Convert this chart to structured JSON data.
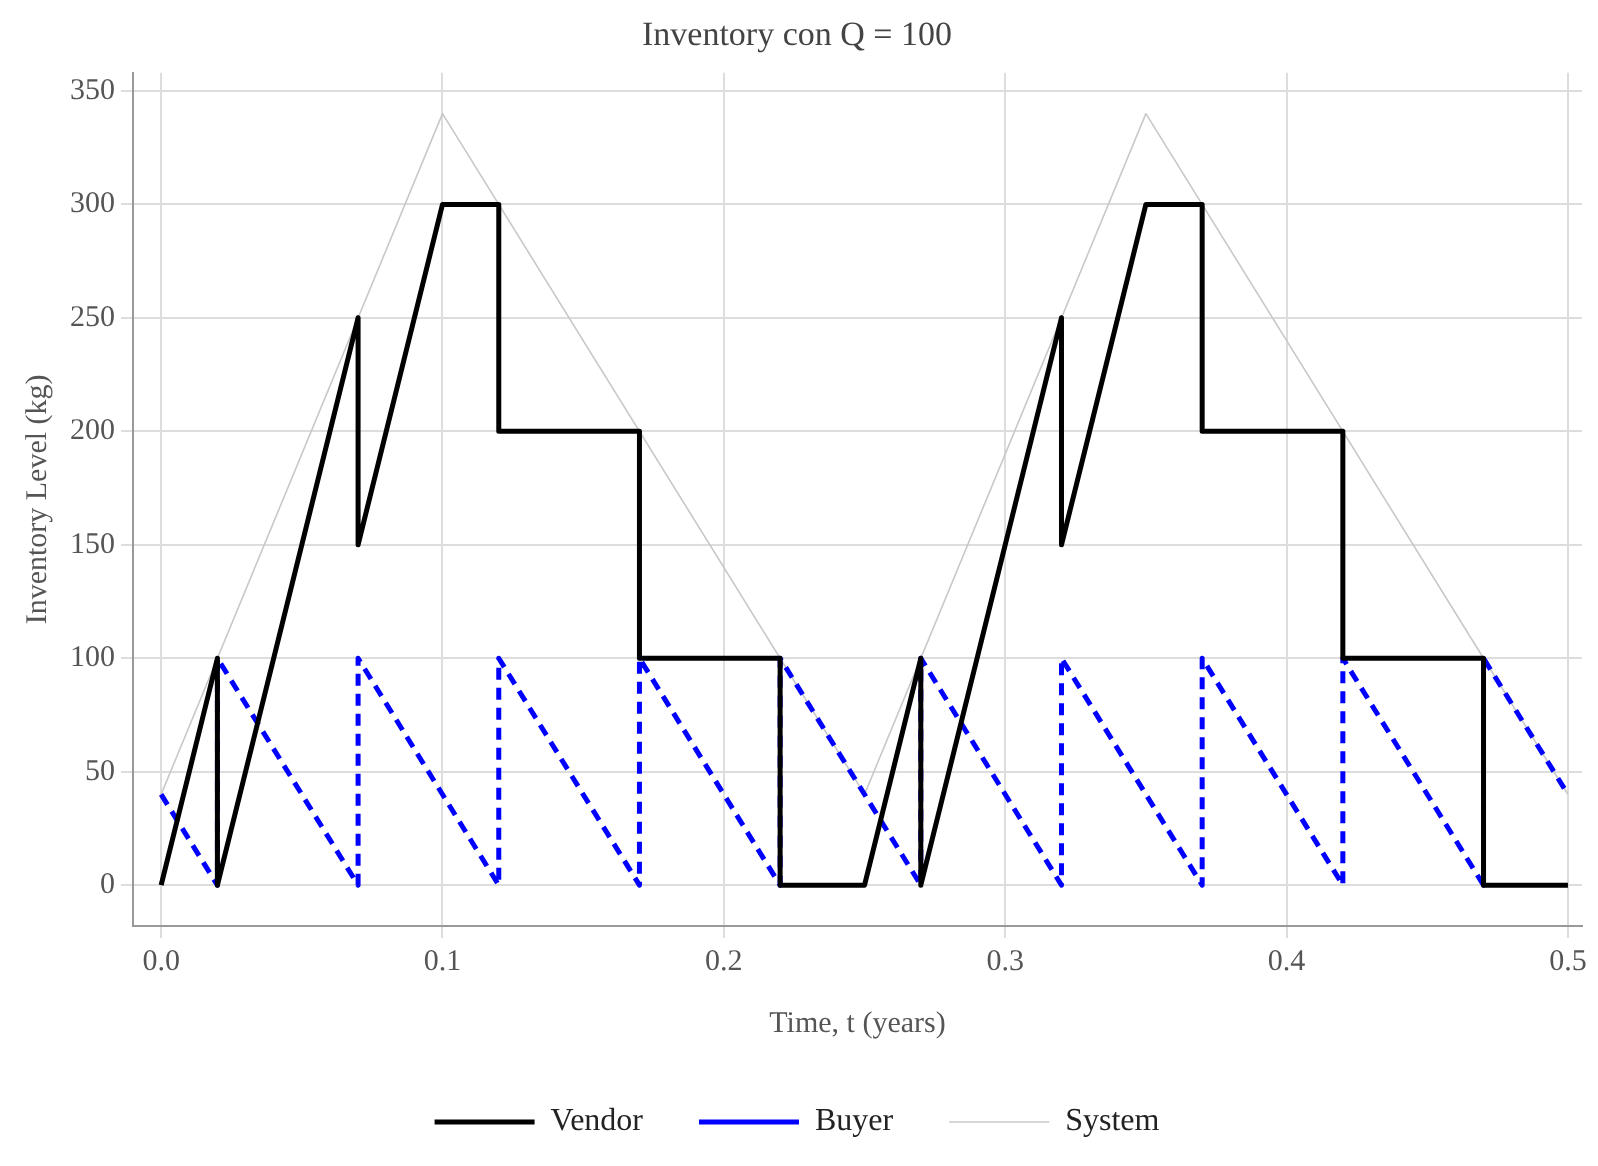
{
  "chart_data": {
    "type": "line",
    "title": "Inventory con Q = 100",
    "xlabel": "Time, t (years)",
    "ylabel": "Inventory Level (kg)",
    "xlim": [
      -0.01,
      0.505
    ],
    "xticks": [
      {
        "value": 0,
        "label": "0.0"
      },
      0.1,
      0.2,
      0.3,
      0.4,
      0.5
    ],
    "ylim": [
      -18,
      358
    ],
    "yticks": [
      0,
      50,
      100,
      150,
      200,
      250,
      300,
      350
    ],
    "grid": true,
    "legend": "bottom",
    "marker": "none",
    "series": [
      {
        "name": "Vendor",
        "color": "#000000",
        "line_style": "solid",
        "x": [
          0,
          0.02,
          0.02,
          0.07,
          0.07,
          0.1,
          0.12,
          0.12,
          0.17,
          0.17,
          0.22,
          0.22,
          0.25,
          0.27,
          0.27,
          0.32,
          0.32,
          0.35,
          0.37,
          0.37,
          0.42,
          0.42,
          0.47,
          0.47,
          0.5
        ],
        "values": [
          0,
          100,
          0,
          250,
          150,
          300,
          300,
          200,
          200,
          100,
          100,
          0,
          0,
          100,
          0,
          250,
          150,
          300,
          300,
          200,
          200,
          100,
          100,
          0,
          0
        ]
      },
      {
        "name": "Buyer",
        "color": "#0000ff",
        "line_style": "dashed",
        "x": [
          0,
          0.02,
          0.02,
          0.07,
          0.07,
          0.12,
          0.12,
          0.17,
          0.17,
          0.22,
          0.22,
          0.27,
          0.27,
          0.32,
          0.32,
          0.37,
          0.37,
          0.42,
          0.42,
          0.47,
          0.47,
          0.5
        ],
        "values": [
          40,
          0,
          100,
          0,
          100,
          0,
          100,
          0,
          100,
          0,
          100,
          0,
          100,
          0,
          100,
          0,
          100,
          0,
          100,
          0,
          100,
          40
        ]
      },
      {
        "name": "System",
        "color": "#c8c8c8",
        "line_style": "solid",
        "x": [
          0,
          0.1,
          0.22,
          0.25,
          0.35,
          0.47,
          0.5
        ],
        "values": [
          40,
          340,
          100,
          40,
          340,
          100,
          40
        ]
      }
    ]
  }
}
